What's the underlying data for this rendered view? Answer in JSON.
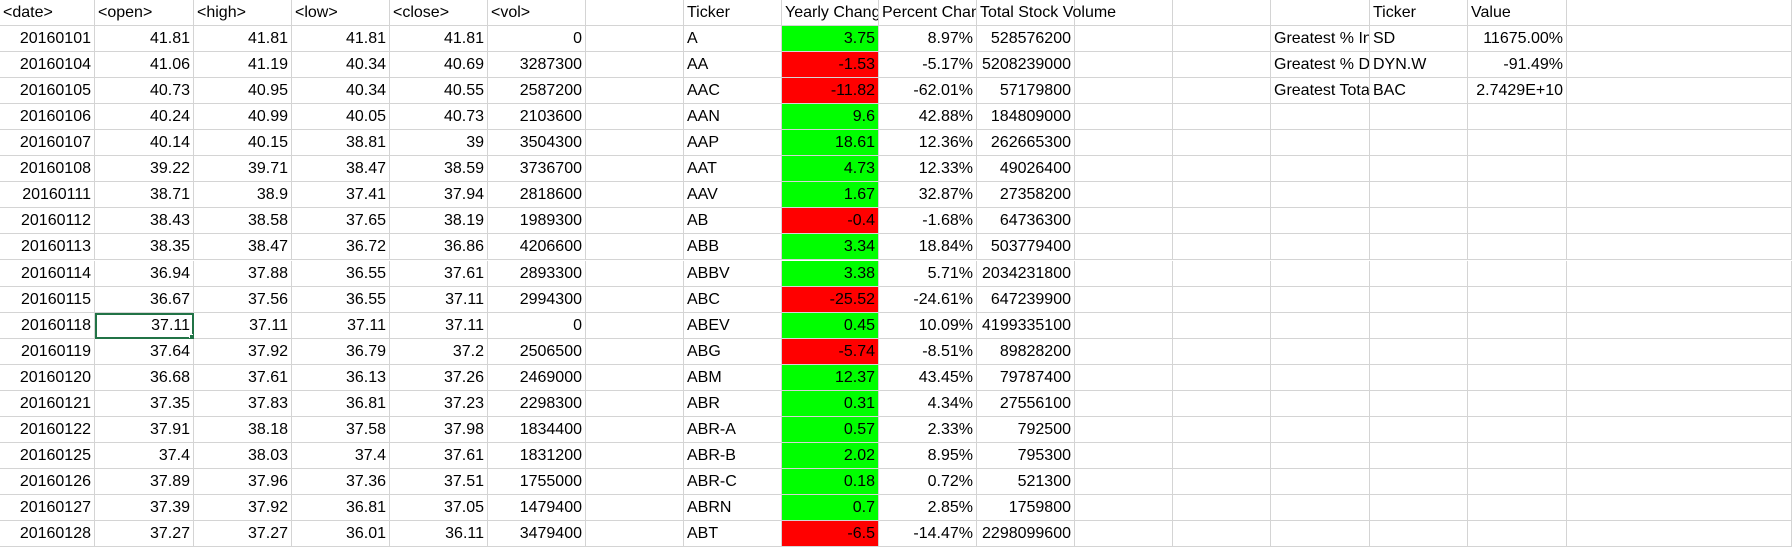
{
  "colors": {
    "positive": "#00ff00",
    "negative": "#ff0000",
    "gridline": "#d4d4d4",
    "selection": "#217346"
  },
  "headers": {
    "date": "<date>",
    "open": "<open>",
    "high": "<high>",
    "low": "<low>",
    "close": "<close>",
    "vol": "<vol>",
    "ticker": "Ticker",
    "yearly_change": "Yearly Change",
    "percent_change": "Percent Change",
    "total_stock_volume": "Total Stock Volume",
    "summary_ticker": "Ticker",
    "summary_value": "Value"
  },
  "selected_cell": {
    "row": 11,
    "col": "open"
  },
  "stock_rows": [
    {
      "date": "20160101",
      "open": "41.81",
      "high": "41.81",
      "low": "41.81",
      "close": "41.81",
      "vol": "0"
    },
    {
      "date": "20160104",
      "open": "41.06",
      "high": "41.19",
      "low": "40.34",
      "close": "40.69",
      "vol": "3287300"
    },
    {
      "date": "20160105",
      "open": "40.73",
      "high": "40.95",
      "low": "40.34",
      "close": "40.55",
      "vol": "2587200"
    },
    {
      "date": "20160106",
      "open": "40.24",
      "high": "40.99",
      "low": "40.05",
      "close": "40.73",
      "vol": "2103600"
    },
    {
      "date": "20160107",
      "open": "40.14",
      "high": "40.15",
      "low": "38.81",
      "close": "39",
      "vol": "3504300"
    },
    {
      "date": "20160108",
      "open": "39.22",
      "high": "39.71",
      "low": "38.47",
      "close": "38.59",
      "vol": "3736700"
    },
    {
      "date": "20160111",
      "open": "38.71",
      "high": "38.9",
      "low": "37.41",
      "close": "37.94",
      "vol": "2818600"
    },
    {
      "date": "20160112",
      "open": "38.43",
      "high": "38.58",
      "low": "37.65",
      "close": "38.19",
      "vol": "1989300"
    },
    {
      "date": "20160113",
      "open": "38.35",
      "high": "38.47",
      "low": "36.72",
      "close": "36.86",
      "vol": "4206600"
    },
    {
      "date": "20160114",
      "open": "36.94",
      "high": "37.88",
      "low": "36.55",
      "close": "37.61",
      "vol": "2893300"
    },
    {
      "date": "20160115",
      "open": "36.67",
      "high": "37.56",
      "low": "36.55",
      "close": "37.11",
      "vol": "2994300"
    },
    {
      "date": "20160118",
      "open": "37.11",
      "high": "37.11",
      "low": "37.11",
      "close": "37.11",
      "vol": "0"
    },
    {
      "date": "20160119",
      "open": "37.64",
      "high": "37.92",
      "low": "36.79",
      "close": "37.2",
      "vol": "2506500"
    },
    {
      "date": "20160120",
      "open": "36.68",
      "high": "37.61",
      "low": "36.13",
      "close": "37.26",
      "vol": "2469000"
    },
    {
      "date": "20160121",
      "open": "37.35",
      "high": "37.83",
      "low": "36.81",
      "close": "37.23",
      "vol": "2298300"
    },
    {
      "date": "20160122",
      "open": "37.91",
      "high": "38.18",
      "low": "37.58",
      "close": "37.98",
      "vol": "1834400"
    },
    {
      "date": "20160125",
      "open": "37.4",
      "high": "38.03",
      "low": "37.4",
      "close": "37.61",
      "vol": "1831200"
    },
    {
      "date": "20160126",
      "open": "37.89",
      "high": "37.96",
      "low": "37.36",
      "close": "37.51",
      "vol": "1755000"
    },
    {
      "date": "20160127",
      "open": "37.39",
      "high": "37.92",
      "low": "36.81",
      "close": "37.05",
      "vol": "1479400"
    },
    {
      "date": "20160128",
      "open": "37.27",
      "high": "37.27",
      "low": "36.01",
      "close": "36.11",
      "vol": "3479400"
    }
  ],
  "summary_rows": [
    {
      "ticker": "A",
      "yearly_change": "3.75",
      "percent_change": "8.97%",
      "total_volume": "528576200",
      "positive": true
    },
    {
      "ticker": "AA",
      "yearly_change": "-1.53",
      "percent_change": "-5.17%",
      "total_volume": "5208239000",
      "positive": false
    },
    {
      "ticker": "AAC",
      "yearly_change": "-11.82",
      "percent_change": "-62.01%",
      "total_volume": "57179800",
      "positive": false
    },
    {
      "ticker": "AAN",
      "yearly_change": "9.6",
      "percent_change": "42.88%",
      "total_volume": "184809000",
      "positive": true
    },
    {
      "ticker": "AAP",
      "yearly_change": "18.61",
      "percent_change": "12.36%",
      "total_volume": "262665300",
      "positive": true
    },
    {
      "ticker": "AAT",
      "yearly_change": "4.73",
      "percent_change": "12.33%",
      "total_volume": "49026400",
      "positive": true
    },
    {
      "ticker": "AAV",
      "yearly_change": "1.67",
      "percent_change": "32.87%",
      "total_volume": "27358200",
      "positive": true
    },
    {
      "ticker": "AB",
      "yearly_change": "-0.4",
      "percent_change": "-1.68%",
      "total_volume": "64736300",
      "positive": false
    },
    {
      "ticker": "ABB",
      "yearly_change": "3.34",
      "percent_change": "18.84%",
      "total_volume": "503779400",
      "positive": true
    },
    {
      "ticker": "ABBV",
      "yearly_change": "3.38",
      "percent_change": "5.71%",
      "total_volume": "2034231800",
      "positive": true
    },
    {
      "ticker": "ABC",
      "yearly_change": "-25.52",
      "percent_change": "-24.61%",
      "total_volume": "647239900",
      "positive": false
    },
    {
      "ticker": "ABEV",
      "yearly_change": "0.45",
      "percent_change": "10.09%",
      "total_volume": "4199335100",
      "positive": true
    },
    {
      "ticker": "ABG",
      "yearly_change": "-5.74",
      "percent_change": "-8.51%",
      "total_volume": "89828200",
      "positive": false
    },
    {
      "ticker": "ABM",
      "yearly_change": "12.37",
      "percent_change": "43.45%",
      "total_volume": "79787400",
      "positive": true
    },
    {
      "ticker": "ABR",
      "yearly_change": "0.31",
      "percent_change": "4.34%",
      "total_volume": "27556100",
      "positive": true
    },
    {
      "ticker": "ABR-A",
      "yearly_change": "0.57",
      "percent_change": "2.33%",
      "total_volume": "792500",
      "positive": true
    },
    {
      "ticker": "ABR-B",
      "yearly_change": "2.02",
      "percent_change": "8.95%",
      "total_volume": "795300",
      "positive": true
    },
    {
      "ticker": "ABR-C",
      "yearly_change": "0.18",
      "percent_change": "0.72%",
      "total_volume": "521300",
      "positive": true
    },
    {
      "ticker": "ABRN",
      "yearly_change": "0.7",
      "percent_change": "2.85%",
      "total_volume": "1759800",
      "positive": true
    },
    {
      "ticker": "ABT",
      "yearly_change": "-6.5",
      "percent_change": "-14.47%",
      "total_volume": "2298099600",
      "positive": false
    }
  ],
  "greatest": [
    {
      "label": "Greatest % Increase",
      "ticker": "SD",
      "value": "11675.00%"
    },
    {
      "label": "Greatest % Decrease",
      "ticker": "DYN.W",
      "value": "-91.49%"
    },
    {
      "label": "Greatest Total Volume",
      "ticker": "BAC",
      "value": "2.7429E+10"
    }
  ]
}
